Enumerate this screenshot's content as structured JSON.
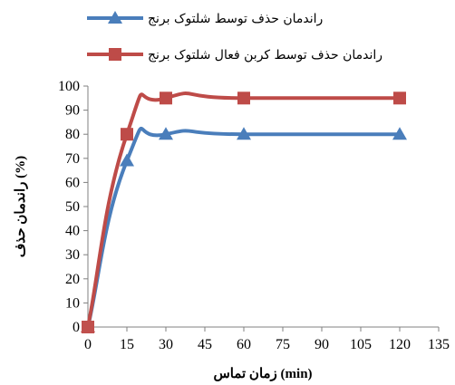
{
  "chart_data": {
    "type": "line",
    "title": "",
    "xlabel": "زمان تماس (min)",
    "ylabel": "راندمان حذف (%)",
    "xlim": [
      0,
      135
    ],
    "ylim": [
      0,
      100
    ],
    "x_ticks": [
      0,
      15,
      30,
      45,
      60,
      75,
      90,
      105,
      120,
      135
    ],
    "y_ticks": [
      0,
      10,
      20,
      30,
      40,
      50,
      60,
      70,
      80,
      90,
      100
    ],
    "grid": false,
    "legend_position": "top",
    "x": [
      0,
      15,
      30,
      60,
      120
    ],
    "series": [
      {
        "name": "راندمان حذف توسط شلتوک برنج",
        "values": [
          0,
          69,
          80,
          80,
          80
        ],
        "color": "#4a7ebb",
        "marker": "triangle"
      },
      {
        "name": "راندمان حذف توسط کربن فعال شلتوک برنج",
        "values": [
          0,
          80,
          95,
          95,
          95
        ],
        "color": "#be4b48",
        "marker": "square"
      }
    ]
  }
}
